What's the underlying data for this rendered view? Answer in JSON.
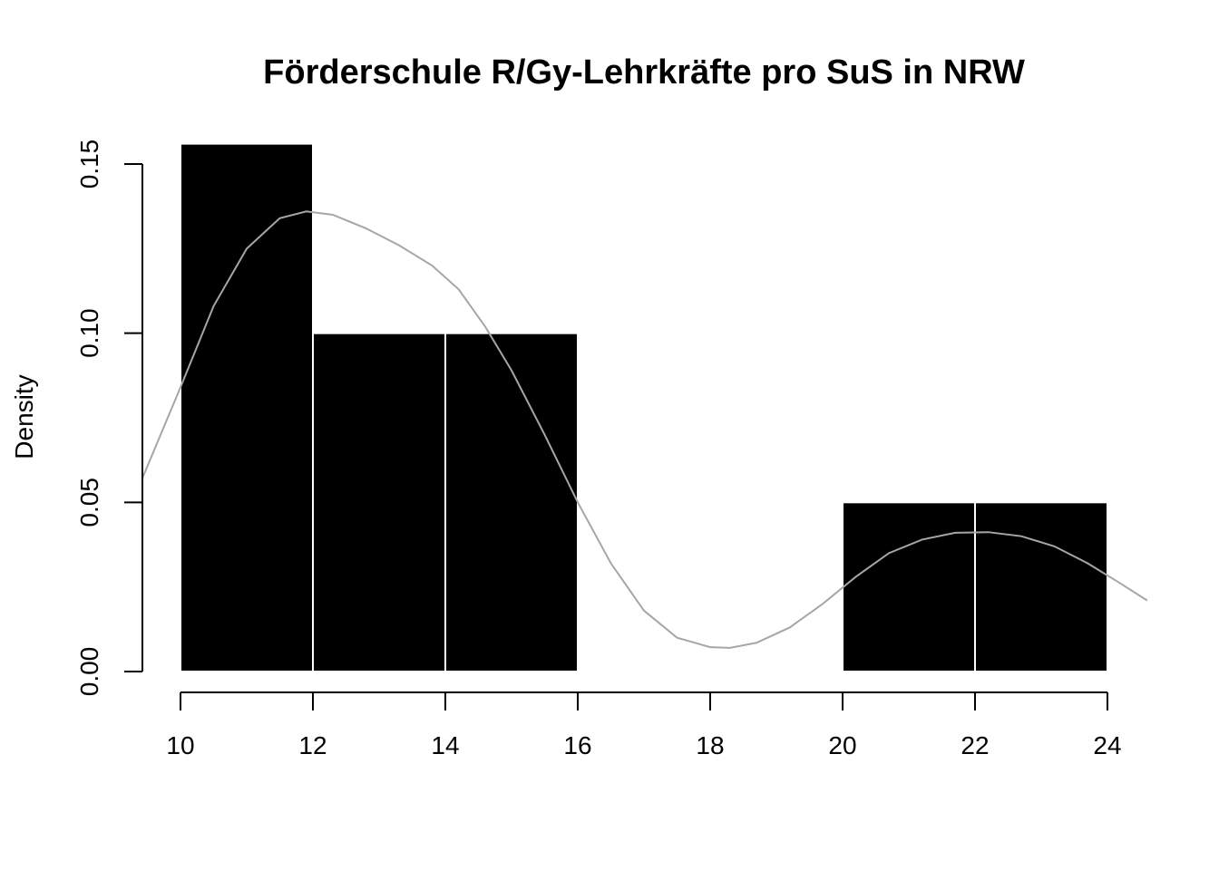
{
  "chart_data": {
    "type": "bar",
    "title": "Förderschule R/Gy-Lehrkräfte pro SuS in NRW",
    "xlabel": "",
    "ylabel": "Density",
    "xlim": [
      10,
      24
    ],
    "ylim": [
      0,
      0.15
    ],
    "x_ticks": [
      10,
      12,
      14,
      16,
      18,
      20,
      22,
      24
    ],
    "y_ticks": [
      0,
      0.05,
      0.1,
      0.15
    ],
    "y_tick_labels": [
      "0.00",
      "0.05",
      "0.10",
      "0.15"
    ],
    "bins": [
      {
        "from": 10,
        "to": 12,
        "density": 0.156
      },
      {
        "from": 12,
        "to": 14,
        "density": 0.1
      },
      {
        "from": 14,
        "to": 16,
        "density": 0.1
      },
      {
        "from": 16,
        "to": 18,
        "density": 0
      },
      {
        "from": 18,
        "to": 20,
        "density": 0
      },
      {
        "from": 20,
        "to": 22,
        "density": 0.05
      },
      {
        "from": 22,
        "to": 24,
        "density": 0.05
      }
    ],
    "density_curve": {
      "x": [
        9.4,
        10.0,
        10.5,
        11.0,
        11.5,
        11.9,
        12.3,
        12.8,
        13.3,
        13.8,
        14.2,
        14.6,
        15.0,
        15.5,
        16.0,
        16.5,
        17.0,
        17.5,
        18.0,
        18.3,
        18.7,
        19.2,
        19.7,
        20.2,
        20.7,
        21.2,
        21.7,
        22.2,
        22.7,
        23.2,
        23.7,
        24.2,
        24.6
      ],
      "y": [
        0.056,
        0.084,
        0.108,
        0.125,
        0.134,
        0.136,
        0.135,
        0.131,
        0.126,
        0.12,
        0.113,
        0.102,
        0.089,
        0.07,
        0.05,
        0.032,
        0.018,
        0.01,
        0.0072,
        0.007,
        0.0085,
        0.013,
        0.02,
        0.028,
        0.035,
        0.039,
        0.041,
        0.0412,
        0.04,
        0.037,
        0.032,
        0.026,
        0.021
      ]
    },
    "colors": {
      "bar_fill": "#000000",
      "bar_border": "#ffffff",
      "density_line": "#a6a6a6",
      "axis": "#000000"
    },
    "grid": false,
    "legend": "none"
  }
}
